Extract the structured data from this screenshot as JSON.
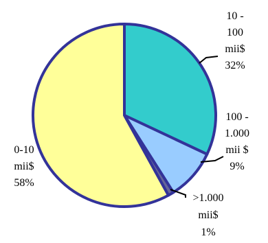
{
  "chart_data": {
    "type": "pie",
    "title": "",
    "slices": [
      {
        "category": "10 - 100 mii$",
        "value": 32,
        "label_lines": [
          "10 -",
          "100",
          "mii$",
          "32%"
        ],
        "color": "#33CCCC"
      },
      {
        "category": "100 - 1.000 mii $",
        "value": 9,
        "label_lines": [
          "100 -",
          "1.000",
          "mii $",
          "9%"
        ],
        "color": "#99CCFF"
      },
      {
        "category": ">1.000 mii$",
        "value": 1,
        "label_lines": [
          ">1.000",
          "mii$",
          "1%"
        ],
        "color": "#666699"
      },
      {
        "category": "0-10 mii$",
        "value": 58,
        "label_lines": [
          "0-10",
          "mii$",
          "58%"
        ],
        "color": "#FFFF99"
      }
    ],
    "start_angle_deg": 0,
    "direction": "clockwise",
    "outline_color": "#333399",
    "legend": "none"
  }
}
